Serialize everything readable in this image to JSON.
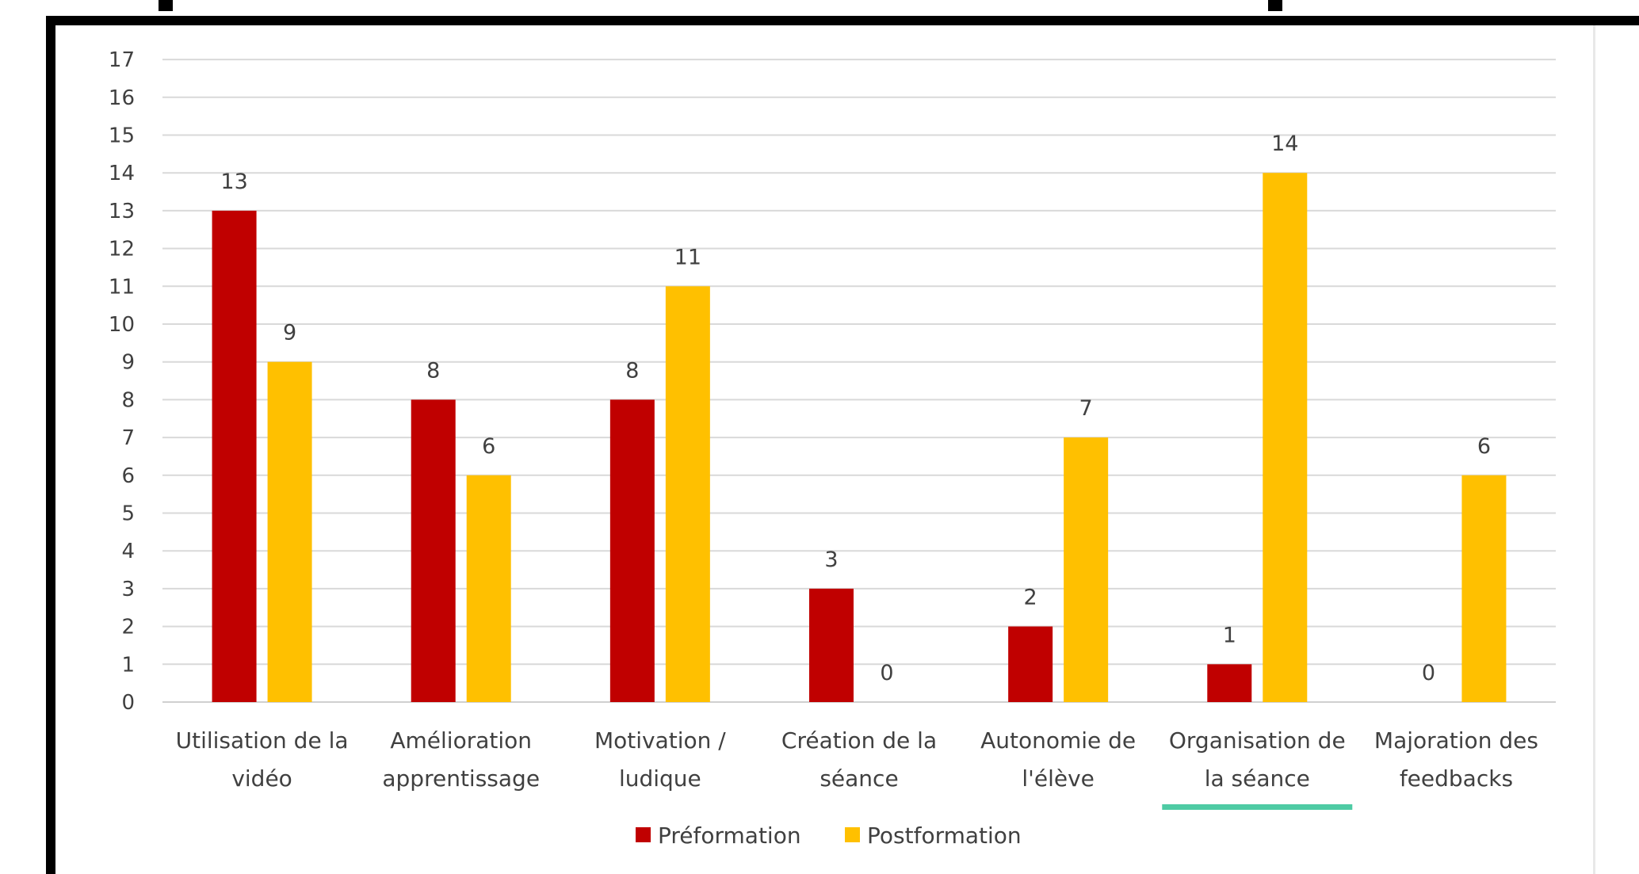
{
  "chart_data": {
    "type": "bar",
    "categories": [
      [
        "Utilisation de la",
        "vidéo"
      ],
      [
        "Amélioration",
        "apprentissage"
      ],
      [
        "Motivation /",
        "ludique"
      ],
      [
        "Création de la",
        "séance"
      ],
      [
        "Autonomie de",
        "l'élève"
      ],
      [
        "Organisation de",
        "la séance"
      ],
      [
        "Majoration des",
        "feedbacks"
      ]
    ],
    "series": [
      {
        "name": "Préformation",
        "color": "#c00000",
        "values": [
          13,
          8,
          8,
          3,
          2,
          1,
          0
        ]
      },
      {
        "name": "Postformation",
        "color": "#ffc000",
        "values": [
          9,
          6,
          11,
          0,
          7,
          14,
          6
        ]
      }
    ],
    "ylim": [
      0,
      17
    ],
    "yticks": [
      0,
      1,
      2,
      3,
      4,
      5,
      6,
      7,
      8,
      9,
      10,
      11,
      12,
      13,
      14,
      15,
      16,
      17
    ],
    "grid": true,
    "legend": "bottom",
    "highlight_color": "#4ecba4"
  }
}
